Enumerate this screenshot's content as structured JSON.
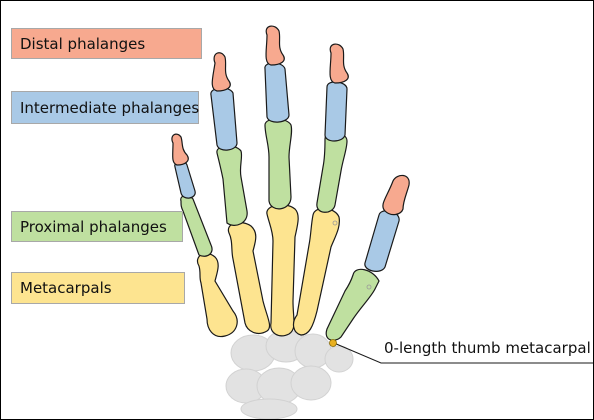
{
  "legend": {
    "distal": {
      "label": "Distal phalanges",
      "color": "#f7a98f"
    },
    "intermediate": {
      "label": "Intermediate phalanges",
      "color": "#a9c9e6"
    },
    "proximal": {
      "label": "Proximal phalanges",
      "color": "#bfe0a0"
    },
    "metacarpal": {
      "label": "Metacarpals",
      "color": "#fde490"
    }
  },
  "annotation": {
    "thumb_label": "0-length thumb metacarpal",
    "marker_color": "#e8b020"
  },
  "colors": {
    "carpal": "#e2e2e2",
    "outline": "#1a1a1a"
  }
}
